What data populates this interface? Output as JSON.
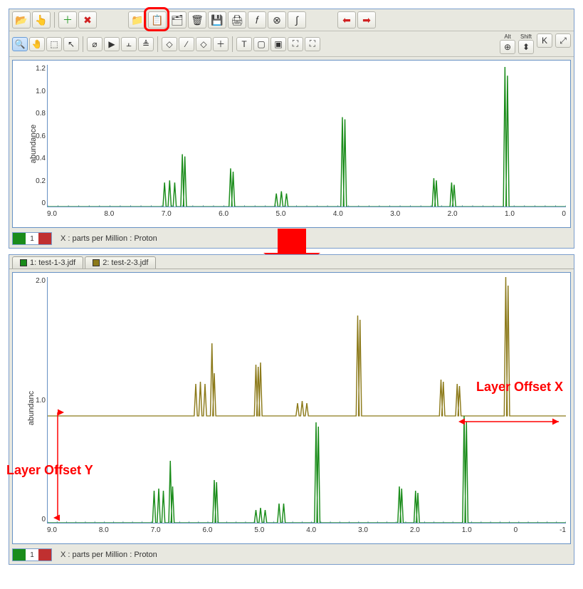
{
  "colors": {
    "accent": "#6691c4",
    "panel_bg": "#e8e8e0",
    "highlight": "#ff0000",
    "series_green": "#1a8c1a",
    "series_olive": "#8c7a1a"
  },
  "toolbar1": {
    "items": [
      {
        "name": "open-icon",
        "desc": "Open",
        "glyph": "📂"
      },
      {
        "name": "open-hand-icon",
        "desc": "Open recent",
        "glyph": "👆"
      },
      {
        "sep": true
      },
      {
        "name": "add-icon",
        "desc": "Add",
        "glyph": "＋",
        "color": "#2a9d2a"
      },
      {
        "name": "delete-icon",
        "desc": "Delete",
        "glyph": "✖",
        "color": "#d02020"
      },
      {
        "spacer": true
      },
      {
        "name": "open2-icon",
        "desc": "Open project",
        "glyph": "📁"
      },
      {
        "name": "paste-layer-icon",
        "desc": "Paste as new layer",
        "glyph": "📋",
        "highlighted": true
      },
      {
        "name": "stack-icon",
        "desc": "Stack",
        "glyph": "🗂"
      },
      {
        "name": "trash-icon",
        "desc": "Trash",
        "glyph": "🗑"
      },
      {
        "name": "save-icon",
        "desc": "Save",
        "glyph": "💾"
      },
      {
        "name": "print-icon",
        "desc": "Print",
        "glyph": "🖨"
      },
      {
        "name": "function-icon",
        "desc": "Function",
        "glyph": "𝑓"
      },
      {
        "name": "close-circle-icon",
        "desc": "Remove",
        "glyph": "⊗"
      },
      {
        "name": "integral-icon",
        "desc": "Integral",
        "glyph": "∫"
      },
      {
        "spacer": true
      },
      {
        "name": "arrow-left-icon",
        "desc": "Back",
        "glyph": "⬅",
        "color": "#d02020"
      },
      {
        "name": "arrow-right-icon",
        "desc": "Forward",
        "glyph": "➡",
        "color": "#d02020"
      }
    ]
  },
  "toolbar2": {
    "items": [
      {
        "name": "zoom-icon",
        "desc": "Zoom",
        "glyph": "🔍",
        "active": true
      },
      {
        "name": "pan-icon",
        "desc": "Pan",
        "glyph": "🤚"
      },
      {
        "name": "zoom-region-icon",
        "desc": "Region",
        "glyph": "⬚"
      },
      {
        "name": "cursor-icon",
        "desc": "Cursor",
        "glyph": "↖"
      },
      {
        "sep": true
      },
      {
        "name": "slash-icon",
        "desc": "Slash",
        "glyph": "⌀"
      },
      {
        "name": "peak-icon",
        "desc": "Peak",
        "glyph": "▶"
      },
      {
        "name": "baseline-icon",
        "desc": "Baseline",
        "glyph": "⫠"
      },
      {
        "name": "align-icon",
        "desc": "Align",
        "glyph": "≜"
      },
      {
        "sep": true
      },
      {
        "name": "diamond-icon",
        "desc": "Marker",
        "glyph": "◇"
      },
      {
        "name": "line-icon",
        "desc": "Line",
        "glyph": "∕"
      },
      {
        "name": "erase-icon",
        "desc": "Erase",
        "glyph": "◇"
      },
      {
        "name": "crosshair-icon",
        "desc": "Crosshair",
        "glyph": "＋"
      },
      {
        "sep": true
      },
      {
        "name": "text-icon",
        "desc": "Text",
        "glyph": "T"
      },
      {
        "name": "rect-fill-icon",
        "desc": "Rect",
        "glyph": "▢"
      },
      {
        "name": "rect-icon",
        "desc": "Rect2",
        "glyph": "▣"
      },
      {
        "name": "resize-icon",
        "desc": "Resize",
        "glyph": "⛶"
      },
      {
        "name": "resize2-icon",
        "desc": "Resize2",
        "glyph": "⛶"
      }
    ],
    "right_items": [
      {
        "name": "alt-icon",
        "desc": "Alt",
        "glyph": "⊕",
        "sub": "Alt"
      },
      {
        "name": "shift-icon",
        "desc": "Shift",
        "glyph": "⬍",
        "sub": "Shift"
      },
      {
        "name": "k-icon",
        "desc": "K",
        "glyph": "K"
      },
      {
        "name": "expand-icon",
        "desc": "Expand",
        "glyph": "⤢"
      }
    ]
  },
  "chart1": {
    "type": "line",
    "y_label": "abundance",
    "x_title": "X : parts per Million : Proton",
    "x_range": [
      10.0,
      -0.2
    ],
    "x_ticks": [
      "9.0",
      "8.0",
      "7.0",
      "6.0",
      "5.0",
      "4.0",
      "3.0",
      "2.0",
      "1.0",
      "0"
    ],
    "y_range": [
      0,
      1.3
    ],
    "y_ticks": [
      "1.2",
      "1.0",
      "0.8",
      "0.6",
      "0.4",
      "0.2",
      "0"
    ],
    "background_color": "#ffffff",
    "series_color": "#1a8c1a",
    "line_width": 1.2,
    "peaks": [
      {
        "x": 7.7,
        "h": 0.22
      },
      {
        "x": 7.6,
        "h": 0.24
      },
      {
        "x": 7.5,
        "h": 0.22
      },
      {
        "x": 7.35,
        "h": 0.48
      },
      {
        "x": 7.3,
        "h": 0.46
      },
      {
        "x": 6.4,
        "h": 0.35
      },
      {
        "x": 6.35,
        "h": 0.32
      },
      {
        "x": 5.5,
        "h": 0.12
      },
      {
        "x": 5.4,
        "h": 0.14
      },
      {
        "x": 5.3,
        "h": 0.12
      },
      {
        "x": 4.2,
        "h": 0.82
      },
      {
        "x": 4.15,
        "h": 0.8
      },
      {
        "x": 2.4,
        "h": 0.26
      },
      {
        "x": 2.35,
        "h": 0.24
      },
      {
        "x": 2.05,
        "h": 0.22
      },
      {
        "x": 2.0,
        "h": 0.2
      },
      {
        "x": 1.0,
        "h": 1.28
      },
      {
        "x": 0.95,
        "h": 1.2
      }
    ],
    "badge": "1"
  },
  "chart2": {
    "type": "line",
    "y_label": "abundanc",
    "x_title": "X : parts per Million : Proton",
    "x_range": [
      10.0,
      -1.2
    ],
    "x_ticks": [
      "9.0",
      "8.0",
      "7.0",
      "6.0",
      "5.0",
      "4.0",
      "3.0",
      "2.0",
      "1.0",
      "0",
      "-1"
    ],
    "y_range": [
      0,
      2.3
    ],
    "y_ticks": [
      "2.0",
      "1.0",
      "0"
    ],
    "background_color": "#ffffff",
    "line_width": 1.2,
    "layer_offset_y": 1.0,
    "layer_offset_x_ppm": -0.9,
    "tabs": [
      {
        "color": "#1a8c1a",
        "label": "1: test-1-3.jdf"
      },
      {
        "color": "#8c7a1a",
        "label": "2: test-2-3.jdf"
      }
    ],
    "green": {
      "color": "#1a8c1a",
      "peaks": [
        {
          "x": 7.7,
          "h": 0.3
        },
        {
          "x": 7.6,
          "h": 0.32
        },
        {
          "x": 7.5,
          "h": 0.3
        },
        {
          "x": 7.35,
          "h": 0.58
        },
        {
          "x": 7.3,
          "h": 0.34
        },
        {
          "x": 6.4,
          "h": 0.4
        },
        {
          "x": 6.35,
          "h": 0.38
        },
        {
          "x": 5.5,
          "h": 0.12
        },
        {
          "x": 5.4,
          "h": 0.14
        },
        {
          "x": 5.3,
          "h": 0.12
        },
        {
          "x": 5.0,
          "h": 0.18
        },
        {
          "x": 4.9,
          "h": 0.18
        },
        {
          "x": 4.2,
          "h": 0.94
        },
        {
          "x": 4.15,
          "h": 0.9
        },
        {
          "x": 2.4,
          "h": 0.34
        },
        {
          "x": 2.35,
          "h": 0.32
        },
        {
          "x": 2.05,
          "h": 0.3
        },
        {
          "x": 2.0,
          "h": 0.28
        },
        {
          "x": 1.0,
          "h": 1.0
        },
        {
          "x": 0.95,
          "h": 0.95
        }
      ]
    },
    "olive": {
      "color": "#8c7a1a",
      "y_offset": 1.0,
      "x_offset": -0.9,
      "peaks": [
        {
          "x": 7.7,
          "h": 0.3
        },
        {
          "x": 7.6,
          "h": 0.32
        },
        {
          "x": 7.5,
          "h": 0.3
        },
        {
          "x": 7.35,
          "h": 0.68
        },
        {
          "x": 7.3,
          "h": 0.4
        },
        {
          "x": 6.4,
          "h": 0.48
        },
        {
          "x": 6.35,
          "h": 0.46
        },
        {
          "x": 6.3,
          "h": 0.5
        },
        {
          "x": 5.5,
          "h": 0.12
        },
        {
          "x": 5.4,
          "h": 0.14
        },
        {
          "x": 5.3,
          "h": 0.12
        },
        {
          "x": 4.2,
          "h": 0.94
        },
        {
          "x": 4.15,
          "h": 0.9
        },
        {
          "x": 2.4,
          "h": 0.34
        },
        {
          "x": 2.35,
          "h": 0.32
        },
        {
          "x": 2.05,
          "h": 0.3
        },
        {
          "x": 2.0,
          "h": 0.28
        },
        {
          "x": 1.0,
          "h": 1.3
        },
        {
          "x": 0.95,
          "h": 1.22
        }
      ]
    },
    "badge": "1",
    "annotations": {
      "offset_x_label": "Layer Offset X",
      "offset_y_label": "Layer Offset Y"
    }
  }
}
